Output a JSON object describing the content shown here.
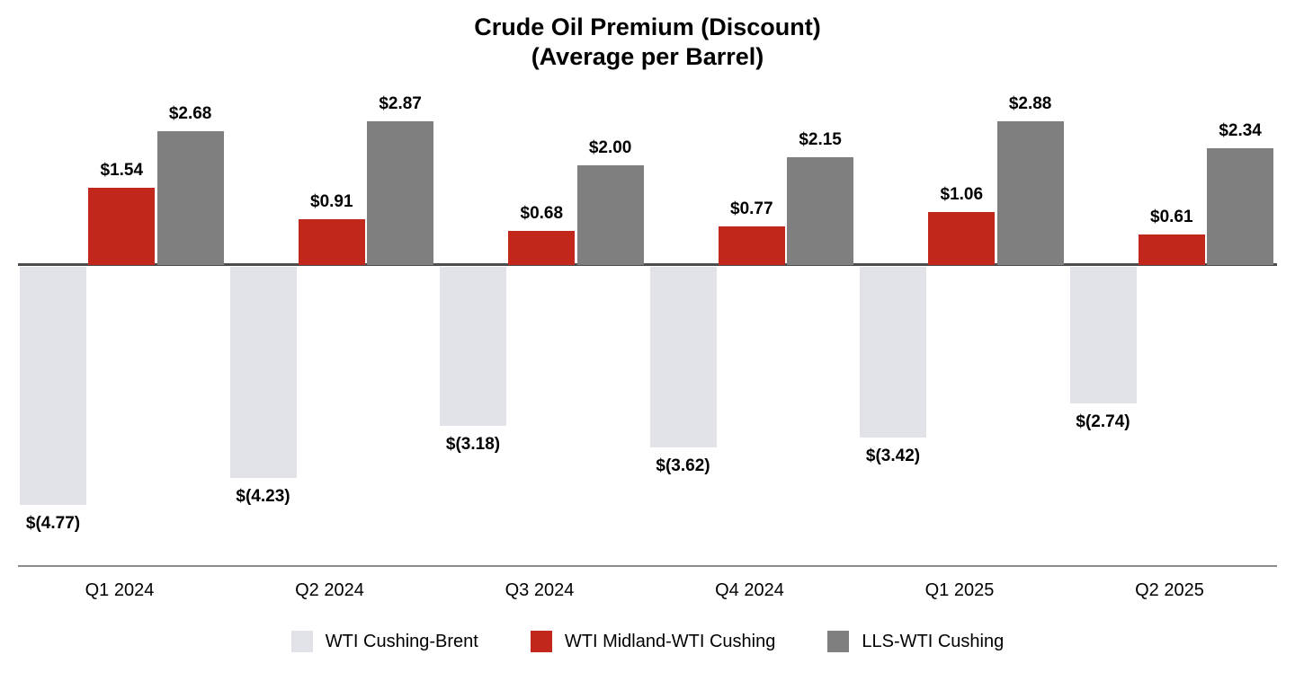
{
  "title": {
    "line1": "Crude Oil Premium (Discount)",
    "line2": "(Average per Barrel)"
  },
  "chart_data": {
    "type": "bar",
    "title": "Crude Oil Premium (Discount) (Average per Barrel)",
    "xlabel": "",
    "ylabel": "",
    "ylim": [
      -5.5,
      3.5
    ],
    "grid": false,
    "legend_position": "bottom",
    "categories": [
      "Q1 2024",
      "Q2 2024",
      "Q3 2024",
      "Q4 2024",
      "Q1 2025",
      "Q2 2025"
    ],
    "series": [
      {
        "name": "WTI Cushing-Brent",
        "color": "#e2e2e9",
        "values": [
          -4.77,
          -4.23,
          -3.18,
          -3.62,
          -3.42,
          -2.74
        ],
        "labels": [
          "$(4.77)",
          "$(4.23)",
          "$(3.18)",
          "$(3.62)",
          "$(3.42)",
          "$(2.74)"
        ]
      },
      {
        "name": "WTI Midland-WTI Cushing",
        "color": "#c1271b",
        "values": [
          1.54,
          0.91,
          0.68,
          0.77,
          1.06,
          0.61
        ],
        "labels": [
          "$1.54",
          "$0.91",
          "$0.68",
          "$0.77",
          "$1.06",
          "$0.61"
        ]
      },
      {
        "name": "LLS-WTI Cushing",
        "color": "#7f7f7f",
        "values": [
          2.68,
          2.87,
          2.0,
          2.15,
          2.88,
          2.34
        ],
        "labels": [
          "$2.68",
          "$2.87",
          "$2.00",
          "$2.15",
          "$2.88",
          "$2.34"
        ]
      }
    ]
  }
}
